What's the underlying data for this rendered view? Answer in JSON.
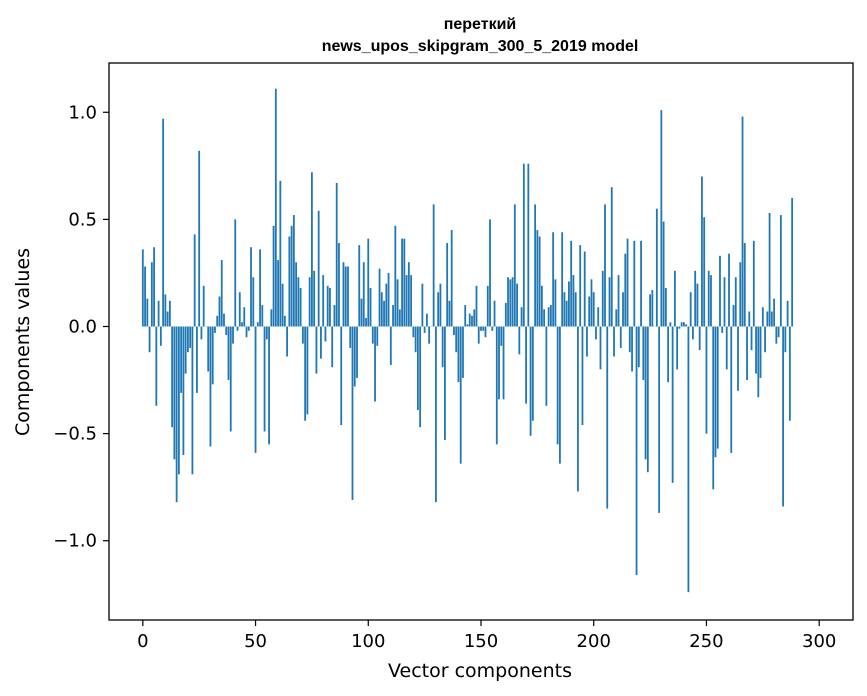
{
  "chart_data": {
    "type": "bar",
    "title": "переткий",
    "subtitle": "news_upos_skipgram_300_5_2019 model",
    "xlabel": "Vector components",
    "ylabel": "Components values",
    "xlim": [
      -15,
      315
    ],
    "ylim": [
      -1.37,
      1.23
    ],
    "xticks": [
      0,
      50,
      100,
      150,
      200,
      250,
      300
    ],
    "xtick_labels": [
      "0",
      "50",
      "100",
      "150",
      "200",
      "250",
      "300"
    ],
    "yticks": [
      1.0,
      0.5,
      0.0,
      -0.5,
      -1.0
    ],
    "ytick_labels": [
      "1.0",
      "0.5",
      "0.0",
      "−0.5",
      "−1.0"
    ],
    "grid": false,
    "bar_color": "#1f77b4",
    "x_start": 0,
    "values": [
      0.36,
      0.28,
      0.13,
      -0.12,
      0.3,
      0.37,
      -0.37,
      0.12,
      -0.09,
      0.97,
      0.15,
      0.07,
      0.12,
      -0.47,
      -0.62,
      -0.82,
      -0.69,
      -0.31,
      -0.6,
      -0.22,
      -0.12,
      -0.1,
      -0.69,
      0.43,
      -0.31,
      0.82,
      -0.06,
      0.19,
      0.0,
      -0.21,
      -0.56,
      -0.27,
      -0.03,
      0.05,
      0.14,
      0.31,
      0.06,
      -0.04,
      -0.25,
      -0.49,
      -0.08,
      0.5,
      -0.02,
      0.16,
      0.02,
      0.09,
      -0.05,
      -0.02,
      0.37,
      0.23,
      -0.59,
      0.02,
      0.36,
      0.1,
      -0.49,
      -0.06,
      -0.55,
      0.08,
      0.47,
      1.11,
      0.31,
      0.68,
      0.2,
      0.05,
      -0.14,
      0.42,
      0.47,
      0.52,
      0.3,
      0.23,
      0.18,
      -0.08,
      -0.44,
      -0.41,
      0.23,
      0.72,
      0.26,
      -0.22,
      0.54,
      -0.15,
      0.24,
      -0.07,
      0.19,
      0.18,
      -0.19,
      0.1,
      0.67,
      0.39,
      -0.46,
      0.3,
      0.28,
      0.28,
      -0.1,
      -0.81,
      -0.28,
      -0.24,
      0.38,
      0.13,
      0.3,
      0.04,
      0.41,
      0.18,
      -0.08,
      -0.35,
      -0.09,
      0.27,
      0.16,
      0.12,
      0.2,
      0.25,
      -0.18,
      0.1,
      0.47,
      0.22,
      0.08,
      0.41,
      0.41,
      0.24,
      0.3,
      0.24,
      -0.05,
      -0.12,
      -0.39,
      -0.47,
      0.2,
      -0.03,
      0.06,
      -0.08,
      0.0,
      0.57,
      -0.82,
      0.16,
      0.2,
      -0.19,
      -0.53,
      0.39,
      0.12,
      0.45,
      -0.04,
      -0.12,
      -0.26,
      -0.64,
      -0.24,
      0.1,
      0.01,
      0.06,
      0.05,
      0.08,
      0.19,
      -0.08,
      -0.02,
      -0.02,
      -0.05,
      0.19,
      0.5,
      -0.02,
      0.12,
      -0.55,
      -0.34,
      -0.09,
      -0.34,
      0.11,
      0.23,
      0.22,
      0.23,
      0.57,
      0.2,
      -0.13,
      0.09,
      0.76,
      -0.36,
      0.76,
      -0.51,
      -0.44,
      0.57,
      0.45,
      0.42,
      0.19,
      0.08,
      -0.37,
      0.09,
      0.1,
      0.44,
      0.22,
      -0.55,
      -0.64,
      0.44,
      0.16,
      0.12,
      0.21,
      0.4,
      0.24,
      0.16,
      -0.77,
      0.38,
      -0.46,
      0.35,
      -0.14,
      0.14,
      0.22,
      0.16,
      -0.06,
      0.09,
      -0.2,
      0.26,
      0.57,
      -0.85,
      0.23,
      0.65,
      -0.14,
      0.08,
      0.24,
      -0.1,
      0.16,
      0.34,
      0.41,
      -0.12,
      -0.21,
      0.4,
      -1.16,
      -0.19,
      0.4,
      -0.25,
      -0.62,
      -0.68,
      0.15,
      0.17,
      0.0,
      0.55,
      -0.87,
      1.01,
      0.49,
      0.18,
      -0.26,
      0.02,
      -0.73,
      0.26,
      -0.2,
      -0.01,
      0.02,
      0.02,
      0.01,
      -1.24,
      0.16,
      -0.06,
      0.26,
      0.2,
      -0.11,
      0.7,
      0.51,
      -0.5,
      0.26,
      0.24,
      -0.76,
      -0.61,
      -0.57,
      0.33,
      -0.03,
      0.23,
      -0.2,
      0.34,
      -0.59,
      0.1,
      0.23,
      -0.3,
      0.3,
      0.98,
      0.39,
      -0.25,
      0.07,
      -0.11,
      0.4,
      -0.22,
      -0.33,
      -0.24,
      0.09,
      -0.12,
      0.07,
      0.53,
      0.07,
      0.13,
      -0.08,
      -0.05,
      0.52,
      -0.84,
      -0.12,
      0.12,
      -0.44,
      0.6
    ]
  }
}
